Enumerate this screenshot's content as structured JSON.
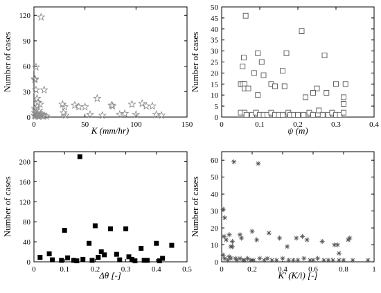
{
  "chart_data": [
    {
      "type": "scatter",
      "marker": "star",
      "marker_color": "#8c8c8c",
      "xlabel": "K (mm/hr)",
      "ylabel": "Number of cases",
      "xlim": [
        0,
        150
      ],
      "ylim": [
        0,
        130
      ],
      "xticks": [
        "0",
        "50",
        "100",
        "150"
      ],
      "yticks": [
        "0",
        "30",
        "60",
        "90",
        "120"
      ],
      "xtick_values": [
        0,
        50,
        100,
        150
      ],
      "ytick_values": [
        0,
        30,
        60,
        90,
        120
      ],
      "points": [
        [
          7,
          118
        ],
        [
          2,
          59
        ],
        [
          1,
          45
        ],
        [
          1,
          44
        ],
        [
          2,
          32
        ],
        [
          10,
          32
        ],
        [
          3,
          22
        ],
        [
          4,
          17
        ],
        [
          6,
          15
        ],
        [
          1,
          10
        ],
        [
          2,
          8
        ],
        [
          5,
          8
        ],
        [
          1,
          5
        ],
        [
          3,
          4
        ],
        [
          6,
          3
        ],
        [
          8,
          3
        ],
        [
          0.5,
          2
        ],
        [
          1.5,
          1
        ],
        [
          2.5,
          2
        ],
        [
          4,
          1
        ],
        [
          5,
          1
        ],
        [
          7,
          2
        ],
        [
          9,
          1
        ],
        [
          10,
          2
        ],
        [
          12,
          1
        ],
        [
          28,
          15
        ],
        [
          30,
          12
        ],
        [
          29,
          5
        ],
        [
          31,
          2
        ],
        [
          40,
          14
        ],
        [
          44,
          12
        ],
        [
          50,
          12
        ],
        [
          55,
          3
        ],
        [
          62,
          22
        ],
        [
          67,
          2
        ],
        [
          76,
          14
        ],
        [
          77,
          13
        ],
        [
          84,
          3
        ],
        [
          89,
          4
        ],
        [
          96,
          15
        ],
        [
          100,
          3
        ],
        [
          106,
          16
        ],
        [
          110,
          13
        ],
        [
          116,
          13
        ],
        [
          120,
          3
        ],
        [
          125,
          2
        ]
      ]
    },
    {
      "type": "scatter",
      "marker": "square-open",
      "marker_color": "#555555",
      "xlabel": "ψ (m)",
      "ylabel": "Number of cases",
      "xlim": [
        0,
        0.4
      ],
      "ylim": [
        0,
        50
      ],
      "xticks": [
        "0",
        "0.1",
        "0.2",
        "0.3",
        "0.4"
      ],
      "yticks": [
        "0",
        "5",
        "10",
        "15",
        "20",
        "25",
        "30",
        "35",
        "40",
        "45",
        "50"
      ],
      "xtick_values": [
        0,
        0.1,
        0.2,
        0.3,
        0.4
      ],
      "ytick_values": [
        0,
        5,
        10,
        15,
        20,
        25,
        30,
        35,
        40,
        45,
        50
      ],
      "points": [
        [
          0.063,
          46
        ],
        [
          0.21,
          39
        ],
        [
          0.058,
          27
        ],
        [
          0.095,
          29
        ],
        [
          0.17,
          29
        ],
        [
          0.105,
          25
        ],
        [
          0.27,
          28
        ],
        [
          0.055,
          23
        ],
        [
          0.085,
          20
        ],
        [
          0.16,
          21
        ],
        [
          0.11,
          19
        ],
        [
          0.05,
          15
        ],
        [
          0.055,
          15
        ],
        [
          0.06,
          15
        ],
        [
          0.13,
          15
        ],
        [
          0.14,
          14
        ],
        [
          0.165,
          14
        ],
        [
          0.3,
          15
        ],
        [
          0.325,
          15
        ],
        [
          0.06,
          13
        ],
        [
          0.07,
          13
        ],
        [
          0.25,
          13
        ],
        [
          0.24,
          11
        ],
        [
          0.275,
          11
        ],
        [
          0.32,
          9
        ],
        [
          0.32,
          6
        ],
        [
          0.095,
          10
        ],
        [
          0.22,
          9
        ],
        [
          0.05,
          2
        ],
        [
          0.06,
          2
        ],
        [
          0.065,
          1
        ],
        [
          0.08,
          1
        ],
        [
          0.09,
          2
        ],
        [
          0.1,
          1
        ],
        [
          0.11,
          1
        ],
        [
          0.12,
          1
        ],
        [
          0.13,
          2
        ],
        [
          0.14,
          1
        ],
        [
          0.15,
          1
        ],
        [
          0.16,
          1
        ],
        [
          0.175,
          2
        ],
        [
          0.18,
          1
        ],
        [
          0.19,
          1
        ],
        [
          0.2,
          1
        ],
        [
          0.215,
          1
        ],
        [
          0.23,
          2
        ],
        [
          0.24,
          1
        ],
        [
          0.255,
          3
        ],
        [
          0.265,
          1
        ],
        [
          0.28,
          1
        ],
        [
          0.29,
          2
        ],
        [
          0.3,
          1
        ],
        [
          0.31,
          1
        ],
        [
          0.32,
          2
        ]
      ]
    },
    {
      "type": "scatter",
      "marker": "square-filled",
      "marker_color": "#000000",
      "xlabel": "Δθ [-]",
      "ylabel": "Number of cases",
      "xlim": [
        0,
        0.5
      ],
      "ylim": [
        0,
        220
      ],
      "xticks": [
        "0",
        "0.1",
        "0.2",
        "0.3",
        "0.4",
        "0.5"
      ],
      "yticks": [
        "0",
        "40",
        "80",
        "120",
        "160",
        "200"
      ],
      "xtick_values": [
        0,
        0.1,
        0.2,
        0.3,
        0.4,
        0.5
      ],
      "ytick_values": [
        0,
        40,
        80,
        120,
        160,
        200
      ],
      "points": [
        [
          0.15,
          210
        ],
        [
          0.2,
          72
        ],
        [
          0.25,
          66
        ],
        [
          0.3,
          66
        ],
        [
          0.1,
          63
        ],
        [
          0.18,
          37
        ],
        [
          0.4,
          37
        ],
        [
          0.45,
          33
        ],
        [
          0.35,
          27
        ],
        [
          0.22,
          20
        ],
        [
          0.05,
          16
        ],
        [
          0.27,
          15
        ],
        [
          0.23,
          14
        ],
        [
          0.02,
          9
        ],
        [
          0.06,
          4
        ],
        [
          0.09,
          3
        ],
        [
          0.11,
          8
        ],
        [
          0.13,
          3
        ],
        [
          0.14,
          2
        ],
        [
          0.16,
          5
        ],
        [
          0.19,
          3
        ],
        [
          0.21,
          9
        ],
        [
          0.28,
          4
        ],
        [
          0.31,
          10
        ],
        [
          0.32,
          5
        ],
        [
          0.33,
          2
        ],
        [
          0.36,
          3
        ],
        [
          0.37,
          3
        ],
        [
          0.41,
          2
        ],
        [
          0.42,
          7
        ]
      ]
    },
    {
      "type": "scatter",
      "marker": "asterisk",
      "marker_color": "#555555",
      "xlabel": "K' (K/i) [-]",
      "ylabel": "Number of cases",
      "xlim": [
        0,
        1
      ],
      "ylim": [
        0,
        65
      ],
      "xticks": [
        "0",
        "0.2",
        "0.4",
        "0.6",
        "0.8",
        "1"
      ],
      "yticks": [
        "0",
        "10",
        "20",
        "30",
        "40",
        "50",
        "60"
      ],
      "xtick_values": [
        0,
        0.2,
        0.4,
        0.6,
        0.8,
        1
      ],
      "ytick_values": [
        0,
        10,
        20,
        30,
        40,
        50,
        60
      ],
      "points": [
        [
          0.08,
          59
        ],
        [
          0.24,
          58
        ],
        [
          0.01,
          31
        ],
        [
          0.02,
          26
        ],
        [
          0.015,
          15
        ],
        [
          0.03,
          13
        ],
        [
          0.05,
          16
        ],
        [
          0.06,
          9
        ],
        [
          0.07,
          12
        ],
        [
          0.12,
          16
        ],
        [
          0.13,
          14
        ],
        [
          0.2,
          18
        ],
        [
          0.23,
          13
        ],
        [
          0.31,
          17
        ],
        [
          0.38,
          14
        ],
        [
          0.43,
          9
        ],
        [
          0.49,
          14
        ],
        [
          0.53,
          15
        ],
        [
          0.56,
          13
        ],
        [
          0.66,
          12
        ],
        [
          0.74,
          10
        ],
        [
          0.76,
          10
        ],
        [
          0.77,
          5
        ],
        [
          0.83,
          13
        ],
        [
          0.84,
          14
        ],
        [
          0.07,
          9
        ],
        [
          0.01,
          4
        ],
        [
          0.02,
          2
        ],
        [
          0.04,
          1
        ],
        [
          0.05,
          3
        ],
        [
          0.06,
          2
        ],
        [
          0.09,
          2
        ],
        [
          0.1,
          1
        ],
        [
          0.12,
          2
        ],
        [
          0.14,
          1
        ],
        [
          0.15,
          1
        ],
        [
          0.17,
          2
        ],
        [
          0.19,
          1
        ],
        [
          0.21,
          1
        ],
        [
          0.25,
          2
        ],
        [
          0.28,
          1
        ],
        [
          0.3,
          2
        ],
        [
          0.33,
          1
        ],
        [
          0.36,
          1
        ],
        [
          0.4,
          2
        ],
        [
          0.44,
          1
        ],
        [
          0.47,
          1
        ],
        [
          0.5,
          1
        ],
        [
          0.54,
          2
        ],
        [
          0.58,
          1
        ],
        [
          0.6,
          1
        ],
        [
          0.63,
          2
        ],
        [
          0.67,
          1
        ],
        [
          0.7,
          1
        ],
        [
          0.73,
          1
        ],
        [
          0.77,
          1
        ],
        [
          0.8,
          1
        ],
        [
          0.86,
          1
        ],
        [
          0.96,
          1
        ]
      ]
    }
  ]
}
